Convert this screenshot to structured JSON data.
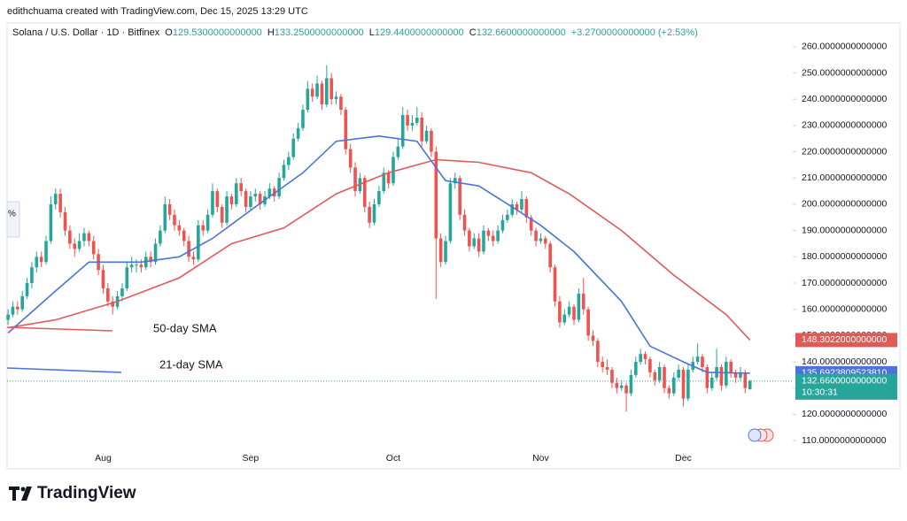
{
  "attribution": "edithchuama created with TradingView.com, Dec 15, 2025 13:29 UTC",
  "brand": "TradingView",
  "chart_data": {
    "type": "candlestick",
    "title": "Solana / U.S. Dollar · 1D · Bitfinex",
    "side_tab": "%",
    "ohlc_legend": [
      {
        "label": "O",
        "value": "129.5300000000000"
      },
      {
        "label": "H",
        "value": "133.2500000000000"
      },
      {
        "label": "L",
        "value": "129.4400000000000"
      },
      {
        "label": "C",
        "value": "132.6600000000000"
      }
    ],
    "change": "+3.2700000000000 (+2.53%)",
    "up_color": "#26a69a",
    "down_color": "#ef5350",
    "xlim": [
      -0.2,
      165
    ],
    "ylim": [
      106,
      265
    ],
    "xticks": [
      {
        "value": 20,
        "label": "Aug"
      },
      {
        "value": 51,
        "label": "Sep"
      },
      {
        "value": 81,
        "label": "Oct"
      },
      {
        "value": 112,
        "label": "Nov"
      },
      {
        "value": 142,
        "label": "Dec"
      }
    ],
    "yticks": [
      {
        "value": 110,
        "label": "110.0000000000000"
      },
      {
        "value": 120,
        "label": "120.0000000000000"
      },
      {
        "value": 130,
        "label": "130.0000000000000"
      },
      {
        "value": 140,
        "label": "140.0000000000000"
      },
      {
        "value": 150,
        "label": "150.0000000000000"
      },
      {
        "value": 160,
        "label": "160.0000000000000"
      },
      {
        "value": 170,
        "label": "170.0000000000000"
      },
      {
        "value": 180,
        "label": "180.0000000000000"
      },
      {
        "value": 190,
        "label": "190.0000000000000"
      },
      {
        "value": 200,
        "label": "200.0000000000000"
      },
      {
        "value": 210,
        "label": "210.0000000000000"
      },
      {
        "value": 220,
        "label": "220.0000000000000"
      },
      {
        "value": 230,
        "label": "230.0000000000000"
      },
      {
        "value": 240,
        "label": "240.0000000000000"
      },
      {
        "value": 250,
        "label": "250.0000000000000"
      },
      {
        "value": 260,
        "label": "260.0000000000000"
      }
    ],
    "ohlc": [
      [
        156,
        160,
        154,
        158
      ],
      [
        158,
        163,
        157,
        161
      ],
      [
        161,
        163,
        158,
        160
      ],
      [
        160,
        167,
        159,
        165
      ],
      [
        165,
        172,
        164,
        170
      ],
      [
        170,
        178,
        168,
        176
      ],
      [
        176,
        182,
        174,
        180
      ],
      [
        180,
        182,
        176,
        178
      ],
      [
        178,
        188,
        177,
        186
      ],
      [
        186,
        203,
        185,
        200
      ],
      [
        200,
        206,
        198,
        204
      ],
      [
        204,
        206,
        195,
        197
      ],
      [
        197,
        199,
        188,
        190
      ],
      [
        190,
        192,
        183,
        185
      ],
      [
        185,
        187,
        180,
        183
      ],
      [
        183,
        189,
        182,
        186
      ],
      [
        186,
        191,
        184,
        189
      ],
      [
        189,
        190,
        184,
        186
      ],
      [
        186,
        188,
        179,
        181
      ],
      [
        181,
        183,
        173,
        175
      ],
      [
        175,
        177,
        166,
        168
      ],
      [
        168,
        170,
        161,
        163
      ],
      [
        163,
        165,
        158,
        161
      ],
      [
        161,
        167,
        160,
        165
      ],
      [
        165,
        170,
        163,
        168
      ],
      [
        168,
        178,
        167,
        176
      ],
      [
        176,
        180,
        174,
        177
      ],
      [
        177,
        179,
        174,
        177
      ],
      [
        177,
        179,
        174,
        176
      ],
      [
        176,
        182,
        175,
        180
      ],
      [
        180,
        182,
        176,
        178
      ],
      [
        178,
        187,
        177,
        185
      ],
      [
        185,
        192,
        184,
        190
      ],
      [
        190,
        203,
        189,
        200
      ],
      [
        200,
        202,
        194,
        196
      ],
      [
        196,
        198,
        190,
        192
      ],
      [
        192,
        194,
        188,
        190
      ],
      [
        190,
        191,
        184,
        186
      ],
      [
        186,
        188,
        178,
        180
      ],
      [
        180,
        182,
        177,
        179
      ],
      [
        179,
        194,
        178,
        192
      ],
      [
        192,
        194,
        188,
        190
      ],
      [
        190,
        198,
        189,
        196
      ],
      [
        196,
        208,
        195,
        205
      ],
      [
        205,
        206,
        197,
        199
      ],
      [
        199,
        200,
        191,
        193
      ],
      [
        193,
        205,
        192,
        203
      ],
      [
        203,
        204,
        198,
        200
      ],
      [
        200,
        210,
        199,
        208
      ],
      [
        208,
        210,
        203,
        205
      ],
      [
        205,
        206,
        197,
        199
      ],
      [
        199,
        205,
        198,
        203
      ],
      [
        203,
        206,
        201,
        204
      ],
      [
        204,
        205,
        198,
        200
      ],
      [
        200,
        205,
        199,
        203
      ],
      [
        203,
        208,
        202,
        206
      ],
      [
        206,
        207,
        201,
        203
      ],
      [
        203,
        212,
        202,
        210
      ],
      [
        210,
        217,
        209,
        215
      ],
      [
        215,
        220,
        213,
        218
      ],
      [
        218,
        227,
        217,
        225
      ],
      [
        225,
        231,
        224,
        229
      ],
      [
        229,
        238,
        228,
        236
      ],
      [
        236,
        247,
        235,
        244
      ],
      [
        244,
        246,
        239,
        241
      ],
      [
        241,
        249,
        240,
        246
      ],
      [
        246,
        247,
        236,
        238
      ],
      [
        238,
        253,
        237,
        248
      ],
      [
        248,
        250,
        238,
        240
      ],
      [
        240,
        243,
        238,
        241
      ],
      [
        241,
        242,
        234,
        236
      ],
      [
        236,
        237,
        219,
        221
      ],
      [
        221,
        223,
        212,
        214
      ],
      [
        214,
        216,
        203,
        205
      ],
      [
        205,
        212,
        204,
        210
      ],
      [
        210,
        211,
        197,
        199
      ],
      [
        199,
        201,
        191,
        193
      ],
      [
        193,
        202,
        192,
        200
      ],
      [
        200,
        207,
        199,
        205
      ],
      [
        205,
        214,
        204,
        212
      ],
      [
        212,
        213,
        206,
        208
      ],
      [
        208,
        220,
        207,
        218
      ],
      [
        218,
        225,
        217,
        222
      ],
      [
        222,
        237,
        221,
        234
      ],
      [
        234,
        236,
        228,
        230
      ],
      [
        230,
        234,
        228,
        231
      ],
      [
        231,
        237,
        230,
        233
      ],
      [
        233,
        235,
        222,
        224
      ],
      [
        224,
        230,
        223,
        228
      ],
      [
        228,
        229,
        218,
        220
      ],
      [
        220,
        222,
        164,
        187
      ],
      [
        187,
        189,
        176,
        178
      ],
      [
        178,
        188,
        177,
        186
      ],
      [
        186,
        210,
        185,
        208
      ],
      [
        208,
        212,
        206,
        210
      ],
      [
        210,
        211,
        194,
        196
      ],
      [
        196,
        198,
        188,
        190
      ],
      [
        190,
        191,
        182,
        184
      ],
      [
        184,
        189,
        183,
        187
      ],
      [
        187,
        189,
        180,
        182
      ],
      [
        182,
        192,
        181,
        190
      ],
      [
        190,
        191,
        186,
        188
      ],
      [
        188,
        190,
        184,
        186
      ],
      [
        186,
        192,
        185,
        190
      ],
      [
        190,
        196,
        189,
        194
      ],
      [
        194,
        198,
        193,
        196
      ],
      [
        196,
        202,
        195,
        200
      ],
      [
        200,
        201,
        196,
        198
      ],
      [
        198,
        205,
        197,
        202
      ],
      [
        202,
        203,
        193,
        195
      ],
      [
        195,
        196,
        188,
        190
      ],
      [
        190,
        191,
        184,
        186
      ],
      [
        186,
        189,
        185,
        187
      ],
      [
        187,
        188,
        183,
        185
      ],
      [
        185,
        186,
        174,
        176
      ],
      [
        176,
        177,
        161,
        163
      ],
      [
        163,
        165,
        153,
        155
      ],
      [
        155,
        160,
        154,
        158
      ],
      [
        158,
        163,
        157,
        161
      ],
      [
        161,
        162,
        154,
        156
      ],
      [
        156,
        168,
        155,
        166
      ],
      [
        166,
        172,
        158,
        160
      ],
      [
        160,
        161,
        148,
        150
      ],
      [
        150,
        152,
        146,
        148
      ],
      [
        148,
        149,
        138,
        140
      ],
      [
        140,
        142,
        136,
        138
      ],
      [
        138,
        141,
        135,
        137
      ],
      [
        137,
        138,
        130,
        132
      ],
      [
        132,
        134,
        128,
        130
      ],
      [
        130,
        133,
        129,
        131
      ],
      [
        131,
        132,
        121,
        128
      ],
      [
        128,
        137,
        127,
        135
      ],
      [
        135,
        142,
        134,
        140
      ],
      [
        140,
        145,
        139,
        143
      ],
      [
        143,
        144,
        139,
        141
      ],
      [
        141,
        142,
        134,
        136
      ],
      [
        136,
        137,
        131,
        133
      ],
      [
        133,
        140,
        132,
        138
      ],
      [
        138,
        139,
        128,
        130
      ],
      [
        130,
        131,
        126,
        128
      ],
      [
        128,
        136,
        127,
        134
      ],
      [
        134,
        139,
        133,
        137
      ],
      [
        137,
        138,
        123,
        126
      ],
      [
        126,
        139,
        125,
        137
      ],
      [
        137,
        142,
        136,
        140
      ],
      [
        140,
        147,
        139,
        142
      ],
      [
        142,
        143,
        136,
        138
      ],
      [
        138,
        139,
        128,
        130
      ],
      [
        130,
        136,
        129,
        134
      ],
      [
        134,
        145,
        133,
        138
      ],
      [
        138,
        139,
        129,
        131
      ],
      [
        131,
        142,
        130,
        140
      ],
      [
        140,
        141,
        134,
        136
      ],
      [
        136,
        137,
        132,
        134
      ],
      [
        134,
        138,
        133,
        136
      ],
      [
        136,
        137,
        128,
        130
      ],
      [
        129.53,
        133.25,
        129.44,
        132.66
      ]
    ],
    "lines": [
      {
        "name": "50-day SMA",
        "color": "#e05a5a",
        "x": [
          0,
          10,
          23,
          36,
          47,
          58,
          69,
          80,
          90,
          99,
          110,
          118,
          129,
          140,
          151,
          156
        ],
        "values": [
          153,
          156,
          163,
          172,
          185,
          191,
          204,
          212,
          217,
          216,
          212,
          204,
          190,
          173,
          158,
          148.3022
        ],
        "last_label": "148.3022000000000"
      },
      {
        "name": "21-day SMA",
        "color": "#4a74d9",
        "x": [
          0,
          10,
          17,
          28,
          36,
          43,
          52,
          62,
          69,
          78,
          86,
          92,
          99,
          106,
          112,
          119,
          129,
          135,
          142,
          147,
          156
        ],
        "values": [
          151,
          167,
          178,
          178,
          180,
          187,
          199,
          212,
          224,
          226,
          224,
          209,
          207,
          199,
          192,
          182,
          163,
          146,
          140,
          136,
          135.692380952381
        ],
        "last_label": "135.6923809523810"
      }
    ],
    "current_price": {
      "value": 132.66,
      "label": "132.6600000000000",
      "countdown": "10:30:31"
    }
  }
}
